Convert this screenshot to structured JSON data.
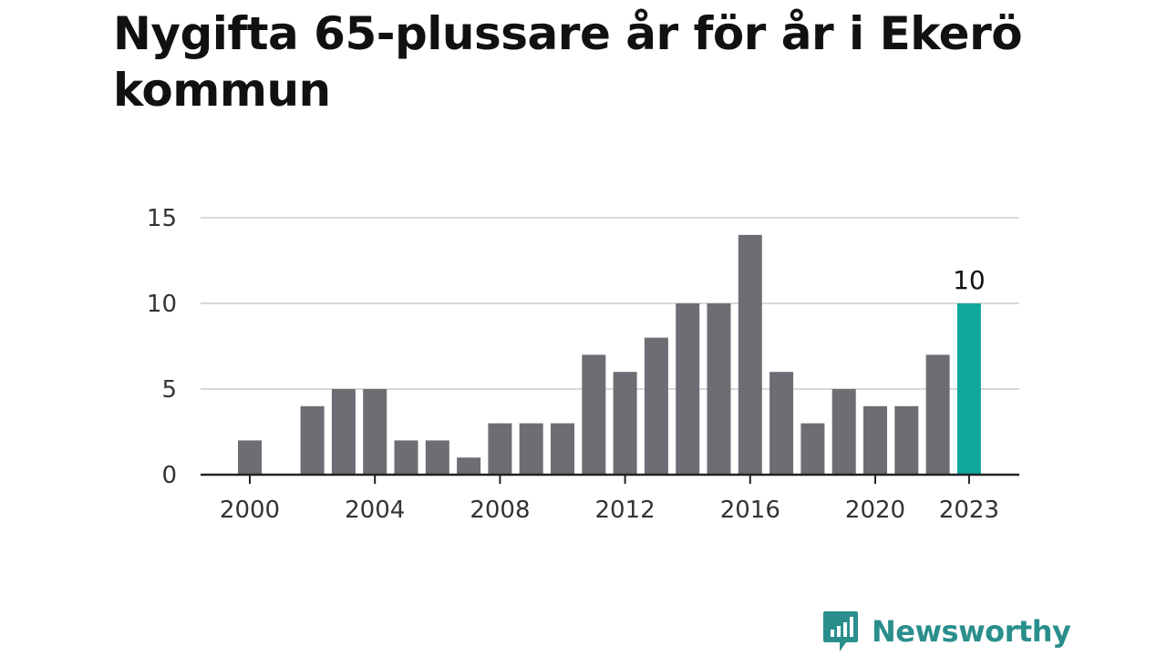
{
  "title": "Nygifta 65-plussare år för år i Ekerö kommun",
  "brand": {
    "name": "Newsworthy",
    "color": "#2a8f8c",
    "icon": "newsworthy-logo-icon"
  },
  "colors": {
    "bar": "#6e6d74",
    "highlight": "#10a89d",
    "grid": "#d9d9d9",
    "axis": "#222222"
  },
  "chart_data": {
    "type": "bar",
    "title": "Nygifta 65-plussare år för år i Ekerö kommun",
    "xlabel": "",
    "ylabel": "",
    "x": [
      2000,
      2001,
      2002,
      2003,
      2004,
      2005,
      2006,
      2007,
      2008,
      2009,
      2010,
      2011,
      2012,
      2013,
      2014,
      2015,
      2016,
      2017,
      2018,
      2019,
      2020,
      2021,
      2022,
      2023
    ],
    "values": [
      2,
      0,
      4,
      5,
      5,
      2,
      2,
      1,
      3,
      3,
      3,
      7,
      6,
      8,
      10,
      10,
      14,
      6,
      3,
      5,
      4,
      4,
      7,
      10
    ],
    "ylim": [
      0,
      15
    ],
    "yticks": [
      0,
      5,
      10,
      15
    ],
    "xticks": [
      2000,
      2004,
      2008,
      2012,
      2016,
      2020,
      2023
    ],
    "highlight": {
      "x": 2023,
      "label": "10"
    },
    "grid": "horizontal",
    "legend": "none"
  }
}
